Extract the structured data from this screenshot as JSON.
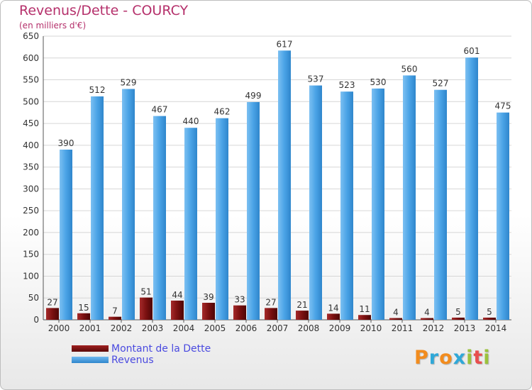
{
  "header": {
    "title": "Revenus/Dette - COURCY",
    "subtitle": "(en milliers d'€)"
  },
  "legend": {
    "debt_label": "Montant de la Dette",
    "revenue_label": "Revenus"
  },
  "logo": {
    "text": "Proxiti",
    "colors": [
      "#f28c1e",
      "#2fa8d8",
      "#f28c1e",
      "#2fa8d8",
      "#9bc23c",
      "#e84f4f",
      "#9bc23c"
    ]
  },
  "colors": {
    "debt": "#7a1010",
    "revenue": "#4aa3e6",
    "title": "#b5306b",
    "legend_text": "#4a4ae0"
  },
  "chart_data": {
    "type": "bar",
    "categories": [
      "2000",
      "2001",
      "2002",
      "2003",
      "2004",
      "2005",
      "2006",
      "2007",
      "2008",
      "2009",
      "2010",
      "2011",
      "2012",
      "2013",
      "2014"
    ],
    "series": [
      {
        "name": "Montant de la Dette",
        "values": [
          27,
          15,
          7,
          51,
          44,
          39,
          33,
          27,
          21,
          14,
          11,
          4,
          4,
          5,
          5
        ]
      },
      {
        "name": "Revenus",
        "values": [
          390,
          512,
          529,
          467,
          440,
          462,
          499,
          617,
          537,
          523,
          530,
          560,
          527,
          601,
          475
        ]
      }
    ],
    "ylim": [
      0,
      650
    ],
    "yticks": [
      0,
      50,
      100,
      150,
      200,
      250,
      300,
      350,
      400,
      450,
      500,
      550,
      600,
      650
    ],
    "grid": true,
    "legend_position": "bottom-left"
  }
}
